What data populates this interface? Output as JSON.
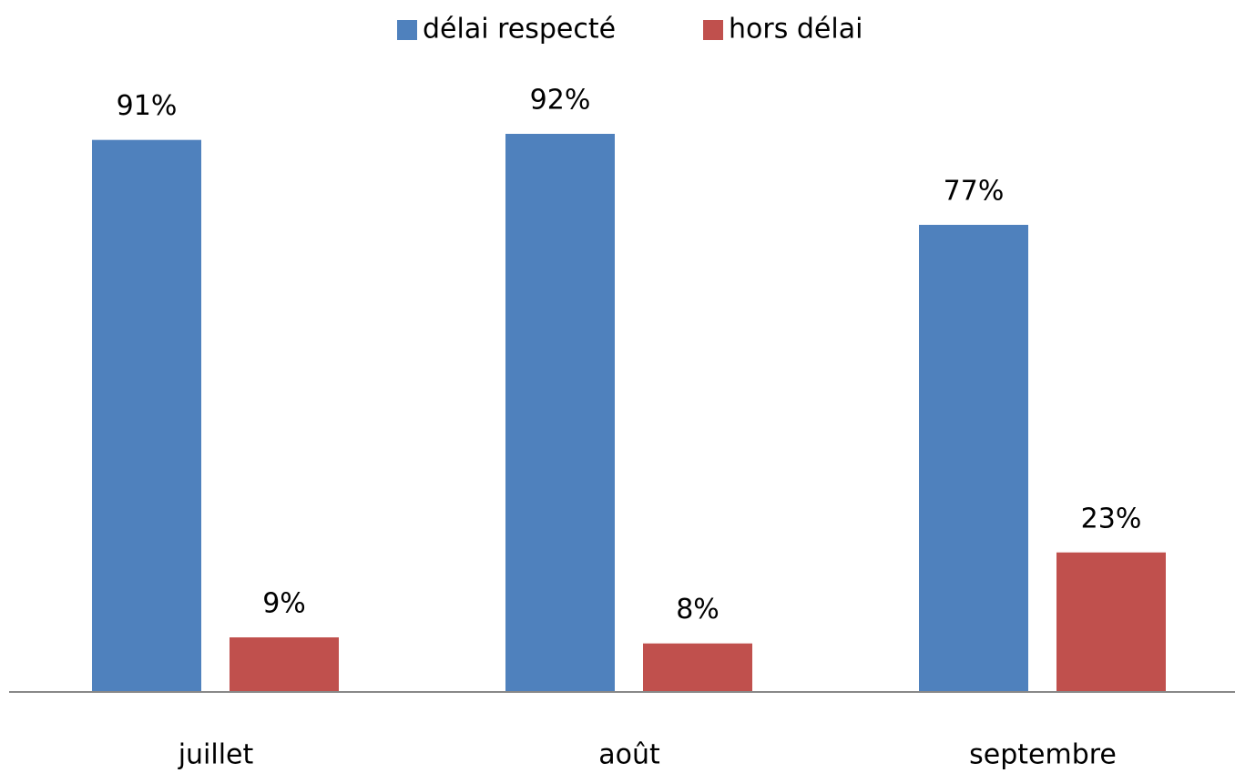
{
  "chart_data": {
    "type": "bar",
    "categories": [
      "juillet",
      "août",
      "septembre"
    ],
    "series": [
      {
        "name": "délai respecté",
        "color": "#4f81bd",
        "values": [
          91,
          92,
          77
        ],
        "value_labels": [
          "91%",
          "92%",
          "77%"
        ]
      },
      {
        "name": "hors délai",
        "color": "#c0504d",
        "values": [
          9,
          8,
          23
        ],
        "value_labels": [
          "9%",
          "8%",
          "23%"
        ]
      }
    ],
    "legend": "top"
  }
}
